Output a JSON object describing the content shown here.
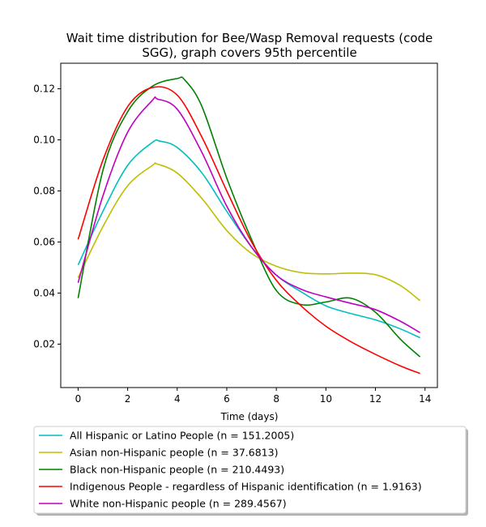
{
  "chart_data": {
    "type": "line",
    "title_lines": [
      "Wait time distribution  for Bee/Wasp Removal  requests (code",
      "SGG), graph covers 95th percentile"
    ],
    "xlabel": "Time (days)",
    "ylabel": "",
    "xlim": [
      -0.7,
      14.5
    ],
    "ylim": [
      0.003,
      0.13
    ],
    "x_ticks": [
      0,
      2,
      4,
      6,
      8,
      10,
      12,
      14
    ],
    "y_ticks": [
      0.02,
      0.04,
      0.06,
      0.08,
      0.1,
      0.12
    ],
    "y_tick_labels": [
      "0.02",
      "0.04",
      "0.06",
      "0.08",
      "0.10",
      "0.12"
    ],
    "grid": false,
    "legend_position": "below",
    "series": [
      {
        "name": "All Hispanic or Latino People (n = 151.2005)",
        "color": "#00bfbf",
        "x": [
          0,
          1,
          2,
          3,
          3.3,
          4,
          5,
          6,
          7,
          8,
          9,
          10,
          11,
          12,
          13,
          13.8
        ],
        "y": [
          0.051,
          0.072,
          0.09,
          0.099,
          0.0995,
          0.097,
          0.087,
          0.072,
          0.058,
          0.047,
          0.0405,
          0.035,
          0.032,
          0.0295,
          0.026,
          0.0225
        ]
      },
      {
        "name": "Asian non-Hispanic people (n = 37.6813)",
        "color": "#bfbf00",
        "x": [
          0,
          1,
          2,
          3,
          3.2,
          4,
          5,
          6,
          7,
          8,
          9,
          10,
          11,
          12,
          13,
          13.8
        ],
        "y": [
          0.046,
          0.066,
          0.082,
          0.09,
          0.0905,
          0.087,
          0.077,
          0.0645,
          0.0555,
          0.0505,
          0.048,
          0.0475,
          0.0478,
          0.0472,
          0.043,
          0.037
        ]
      },
      {
        "name": "Black non-Hispanic people (n = 210.4493)",
        "color": "#008000",
        "x": [
          0,
          1,
          2,
          3,
          4,
          4.3,
          5,
          6,
          7,
          8,
          9,
          10,
          11,
          12,
          13,
          13.8
        ],
        "y": [
          0.038,
          0.088,
          0.111,
          0.121,
          0.124,
          0.1235,
          0.113,
          0.085,
          0.061,
          0.041,
          0.0355,
          0.0365,
          0.038,
          0.0325,
          0.022,
          0.015
        ]
      },
      {
        "name": "Indigenous People - regardless of Hispanic identification (n = 1.9163)",
        "color": "#ff0000",
        "x": [
          0,
          1,
          2,
          3,
          4,
          5,
          6,
          7,
          8,
          9,
          10,
          11,
          12,
          13,
          13.8
        ],
        "y": [
          0.061,
          0.092,
          0.113,
          0.1205,
          0.1175,
          0.101,
          0.08,
          0.06,
          0.045,
          0.035,
          0.027,
          0.021,
          0.016,
          0.0115,
          0.0085
        ]
      },
      {
        "name": "White non-Hispanic people (n = 289.4567)",
        "color": "#bf00bf",
        "x": [
          0,
          1,
          2,
          3,
          3.2,
          4,
          5,
          6,
          7,
          8,
          9,
          10,
          11,
          12,
          13,
          13.8
        ],
        "y": [
          0.044,
          0.078,
          0.103,
          0.1155,
          0.116,
          0.112,
          0.095,
          0.074,
          0.058,
          0.047,
          0.0415,
          0.0385,
          0.036,
          0.0335,
          0.029,
          0.0245
        ]
      }
    ]
  }
}
